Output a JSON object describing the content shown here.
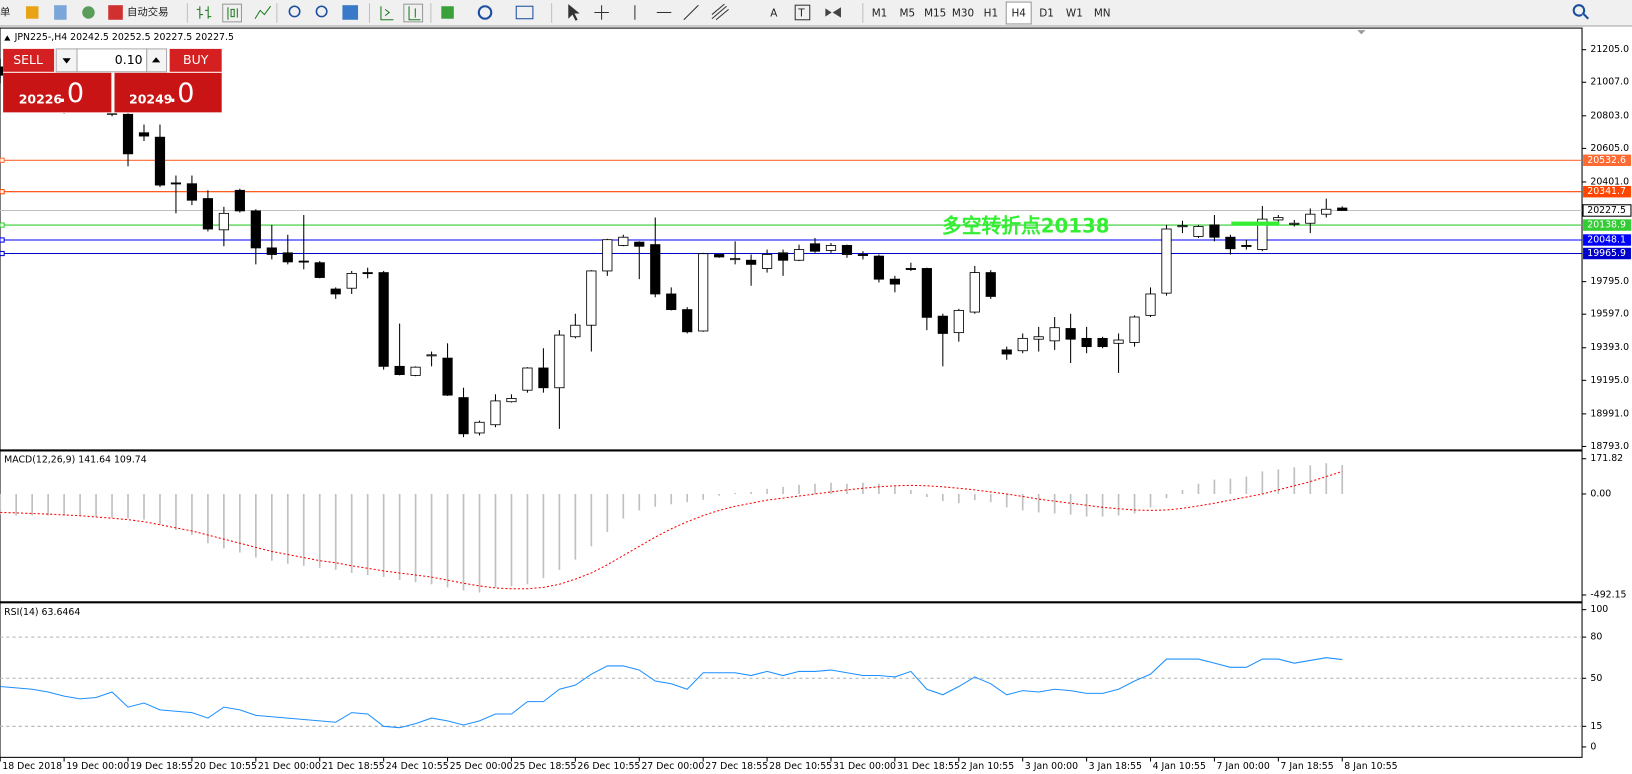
{
  "toolbar": {
    "cut_text": "单",
    "auto_trade": "自动交易",
    "letters": [
      "A",
      "T"
    ],
    "timeframes": [
      "M1",
      "M5",
      "M15",
      "M30",
      "H1",
      "H4",
      "D1",
      "W1",
      "MN"
    ],
    "active_timeframe": 5
  },
  "trade_panel": {
    "sell": "SELL",
    "buy": "BUY",
    "lot": "0.10",
    "bid_main": "20226",
    "bid_tail": ".0",
    "ask_main": "20249",
    "ask_tail": ".0"
  },
  "chart_data": [
    {
      "type": "candlestick",
      "title": "JPN225-,H4  20242.5 20252.5 20227.5 20227.5",
      "categories": [
        "18 Dec 2018",
        null,
        null,
        null,
        "19 Dec 00:00",
        null,
        null,
        null,
        "19 Dec 18:55",
        null,
        null,
        null,
        "20 Dec 10:55",
        null,
        null,
        null,
        "21 Dec 00:00",
        null,
        null,
        null,
        "21 Dec 18:55",
        null,
        null,
        null,
        "24 Dec 10:55",
        null,
        null,
        null,
        "25 Dec 00:00",
        null,
        null,
        null,
        "25 Dec 18:55",
        null,
        null,
        null,
        "26 Dec 10:55",
        null,
        null,
        null,
        "27 Dec 00:00",
        null,
        null,
        null,
        "27 Dec 18:55",
        null,
        null,
        null,
        "28 Dec 10:55",
        null,
        null,
        null,
        "31 Dec 00:00",
        null,
        null,
        null,
        "31 Dec 18:55",
        null,
        null,
        null,
        "2 Jan 10:55",
        null,
        null,
        null,
        "3 Jan 00:00",
        null,
        null,
        null,
        "3 Jan 18:55",
        null,
        null,
        null,
        "4 Jan 10:55",
        null,
        null,
        null,
        "7 Jan 00:00",
        null,
        null,
        null,
        "7 Jan 18:55",
        null,
        null,
        null,
        "8 Jan 10:55"
      ],
      "open": [
        21100,
        21050,
        21000,
        21030,
        20950,
        20900,
        20950,
        20880,
        20812,
        20700,
        20673,
        20395,
        20390,
        20300,
        20110,
        20350,
        20225,
        20000,
        19970,
        19920,
        19910,
        19750,
        19755,
        19850,
        19850,
        19280,
        19225,
        19350,
        19330,
        19090,
        18875,
        18925,
        19065,
        19135,
        19270,
        19150,
        19460,
        19530,
        19860,
        20015,
        20035,
        20020,
        19720,
        19625,
        19495,
        19960,
        19935,
        19925,
        19875,
        19970,
        19925,
        20025,
        19985,
        20015,
        19960,
        19950,
        19810,
        19875,
        19875,
        19585,
        19485,
        19610,
        19850,
        19380,
        19375,
        19445,
        19435,
        19510,
        19450,
        19450,
        19420,
        19425,
        19590,
        19725,
        20135,
        20070,
        20140,
        20065,
        20015,
        19990,
        20170,
        20150,
        20150,
        20205,
        20242.5
      ],
      "high": [
        21150,
        21080,
        21060,
        21050,
        20980,
        20990,
        20970,
        20900,
        20875,
        20750,
        20750,
        20440,
        20440,
        20350,
        20250,
        20360,
        20235,
        20140,
        20080,
        20200,
        19920,
        19760,
        19860,
        19880,
        19860,
        19540,
        19280,
        19370,
        19420,
        19150,
        18950,
        19110,
        19110,
        19275,
        19390,
        19500,
        19600,
        19865,
        20055,
        20080,
        20040,
        20185,
        19760,
        19640,
        19970,
        19960,
        20040,
        19960,
        19990,
        19990,
        20020,
        20060,
        20030,
        20020,
        19980,
        19960,
        19830,
        19910,
        19880,
        19600,
        19630,
        19890,
        19865,
        19400,
        19480,
        19520,
        19580,
        19600,
        19520,
        19460,
        19480,
        19590,
        19760,
        20140,
        20165,
        20140,
        20200,
        20080,
        20050,
        20255,
        20200,
        20170,
        20240,
        20300,
        20252.5
      ],
      "low": [
        21000,
        20950,
        20940,
        20920,
        20815,
        20880,
        20850,
        20800,
        20496,
        20650,
        20370,
        20210,
        20260,
        20100,
        20010,
        20215,
        19900,
        19930,
        19900,
        19870,
        19815,
        19690,
        19720,
        19815,
        19260,
        19225,
        19220,
        19280,
        19100,
        18850,
        18860,
        18910,
        19060,
        19120,
        19120,
        18900,
        19450,
        19370,
        19830,
        20010,
        19810,
        19700,
        19620,
        19480,
        19490,
        19940,
        19900,
        19770,
        19850,
        19830,
        19920,
        19970,
        19970,
        19940,
        19930,
        19790,
        19730,
        19860,
        19500,
        19280,
        19430,
        19600,
        19690,
        19320,
        19360,
        19370,
        19380,
        19300,
        19360,
        19390,
        19240,
        19400,
        19580,
        19710,
        20090,
        20060,
        20040,
        19960,
        19990,
        19980,
        20160,
        20130,
        20090,
        20185,
        20227.5
      ],
      "close": [
        21050,
        21000,
        21030,
        20950,
        20900,
        20950,
        20880,
        20812,
        20572,
        20680,
        20382,
        20390,
        20290,
        20115,
        20210,
        20225,
        20000,
        19960,
        19915,
        19915,
        19820,
        19720,
        19845,
        19845,
        19280,
        19230,
        19275,
        19350,
        19105,
        18870,
        18940,
        19070,
        19085,
        19270,
        19150,
        19470,
        19530,
        19860,
        20050,
        20065,
        20010,
        19720,
        19625,
        19490,
        19965,
        19945,
        19935,
        19900,
        19960,
        19925,
        19990,
        19980,
        20015,
        19960,
        19955,
        19810,
        19780,
        19870,
        19578,
        19480,
        19620,
        19850,
        19705,
        19355,
        19450,
        19460,
        19515,
        19445,
        19400,
        19400,
        19440,
        19580,
        19720,
        20115,
        20135,
        20130,
        20065,
        19995,
        20010,
        20175,
        20185,
        20150,
        20205,
        20235,
        20227.5
      ],
      "up_color": "#ffffff",
      "down_color": "#000000",
      "ylim": [
        18775,
        21330
      ],
      "yticks": [
        {
          "value": 21205,
          "label": "21205.0"
        },
        {
          "value": 21007,
          "label": "21007.0"
        },
        {
          "value": 20803,
          "label": "20803.0"
        },
        {
          "value": 20605,
          "label": "20605.0"
        },
        {
          "value": 20401,
          "label": "20401.0"
        },
        {
          "value": 19795,
          "label": "19795.0"
        },
        {
          "value": 19597,
          "label": "19597.0"
        },
        {
          "value": 19393,
          "label": "19393.0"
        },
        {
          "value": 19195,
          "label": "19195.0"
        },
        {
          "value": 18991,
          "label": "18991.0"
        },
        {
          "value": 18793,
          "label": "18793.0"
        }
      ],
      "levels": [
        {
          "value": 20532.6,
          "color": "#ff6a33"
        },
        {
          "value": 20341.7,
          "color": "#ff4500"
        },
        {
          "value": 20138.9,
          "color": "#33cc33"
        },
        {
          "value": 20048.1,
          "color": "#0000ff"
        },
        {
          "value": 19965.9,
          "color": "#0000cc"
        }
      ],
      "bid": 20227.5,
      "annotation": "多空转折点20138",
      "annotation_color": "#33ee33"
    },
    {
      "type": "bar",
      "title": "MACD(12,26,9) 141.64 109.74",
      "series": [
        {
          "color": "#c0c0c0",
          "values": [
            -100,
            -105,
            -105,
            -105,
            -105,
            -105,
            -110,
            -115,
            -120,
            -125,
            -150,
            -175,
            -200,
            -240,
            -265,
            -285,
            -310,
            -325,
            -340,
            -350,
            -360,
            -370,
            -385,
            -395,
            -405,
            -420,
            -430,
            -440,
            -455,
            -470,
            -480,
            -455,
            -450,
            -440,
            -410,
            -370,
            -320,
            -255,
            -185,
            -120,
            -80,
            -62,
            -50,
            -40,
            -28,
            -8,
            5,
            10,
            25,
            35,
            45,
            50,
            55,
            50,
            55,
            50,
            40,
            20,
            -15,
            -35,
            -45,
            -30,
            -40,
            -65,
            -80,
            -90,
            -95,
            -100,
            -110,
            -110,
            -105,
            -95,
            -65,
            -20,
            20,
            50,
            70,
            75,
            85,
            110,
            120,
            130,
            140,
            150,
            141.64
          ]
        },
        {
          "type": "line",
          "color": "#ff0000",
          "dotted": true,
          "values": [
            -90,
            -92,
            -95,
            -98,
            -102,
            -106,
            -112,
            -118,
            -125,
            -135,
            -150,
            -165,
            -180,
            -200,
            -220,
            -240,
            -260,
            -280,
            -295,
            -310,
            -325,
            -335,
            -350,
            -362,
            -375,
            -385,
            -395,
            -405,
            -420,
            -435,
            -448,
            -458,
            -462,
            -462,
            -455,
            -440,
            -415,
            -385,
            -345,
            -300,
            -255,
            -210,
            -170,
            -135,
            -105,
            -80,
            -60,
            -45,
            -30,
            -20,
            -10,
            0,
            10,
            20,
            28,
            35,
            40,
            42,
            40,
            35,
            28,
            20,
            10,
            0,
            -12,
            -25,
            -35,
            -45,
            -55,
            -65,
            -72,
            -78,
            -80,
            -78,
            -70,
            -58,
            -45,
            -30,
            -15,
            0,
            20,
            40,
            60,
            85,
            109.74
          ]
        }
      ],
      "ylim": [
        -523,
        202
      ],
      "yticks": [
        171.82,
        {
          "value": 0,
          "label": "0.00"
        },
        -492.15
      ]
    },
    {
      "type": "line",
      "title": "RSI(14) 63.6464",
      "color": "#1e90ff",
      "values": [
        44,
        43,
        42,
        40,
        37,
        35,
        36,
        40,
        29,
        32,
        27,
        26,
        25,
        21,
        29,
        27,
        23,
        22,
        21,
        20,
        19,
        18,
        25,
        24,
        15,
        14,
        17,
        21,
        19,
        16,
        19,
        24,
        24,
        33,
        33,
        42,
        45,
        53,
        59,
        59,
        56,
        48,
        46,
        42,
        54,
        54,
        54,
        52,
        55,
        52,
        55,
        55,
        56,
        54,
        52,
        52,
        51,
        55,
        42,
        38,
        44,
        51,
        46,
        38,
        41,
        40,
        42,
        41,
        39,
        39,
        42,
        48,
        53,
        64,
        64,
        64,
        61,
        58,
        58,
        64,
        64,
        61,
        63,
        65,
        63.6464
      ],
      "ylim": [
        -7.6,
        103.8
      ],
      "yticks": [
        100,
        80,
        50,
        15,
        0
      ],
      "levels": [
        80,
        50,
        15
      ]
    }
  ]
}
